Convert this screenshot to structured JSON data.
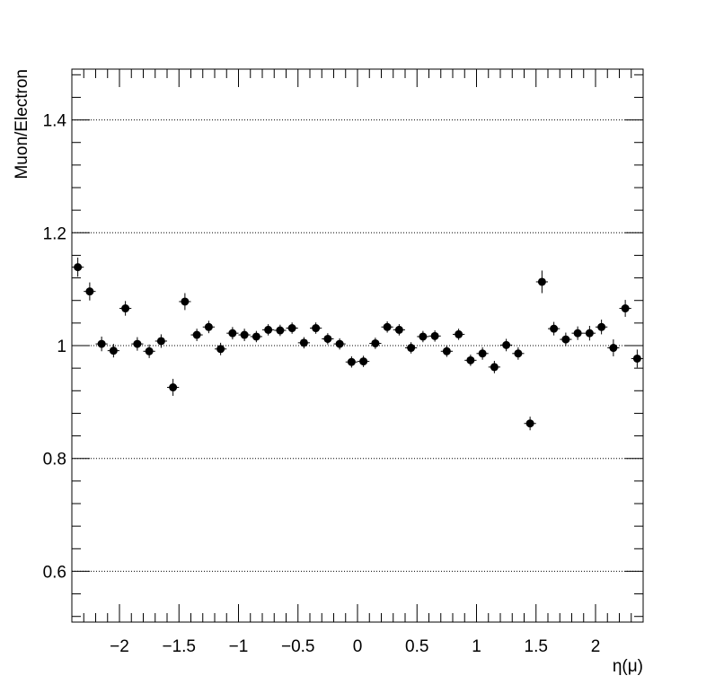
{
  "chart_data": {
    "type": "scatter",
    "title": "",
    "xlabel": "η(μ)",
    "ylabel": "Muon/Electron",
    "xlim": [
      -2.4,
      2.4
    ],
    "ylim": [
      0.51,
      1.49
    ],
    "x_ticks": [
      {
        "value": -2,
        "label": "−2"
      },
      {
        "value": -1.5,
        "label": "−1.5"
      },
      {
        "value": -1,
        "label": "−1"
      },
      {
        "value": -0.5,
        "label": "−0.5"
      },
      {
        "value": 0,
        "label": "0"
      },
      {
        "value": 0.5,
        "label": "0.5"
      },
      {
        "value": 1,
        "label": "1"
      },
      {
        "value": 1.5,
        "label": "1.5"
      },
      {
        "value": 2,
        "label": "2"
      }
    ],
    "y_ticks": [
      {
        "value": 0.6,
        "label": "0.6"
      },
      {
        "value": 0.8,
        "label": "0.8"
      },
      {
        "value": 1.0,
        "label": "1"
      },
      {
        "value": 1.2,
        "label": "1.2"
      },
      {
        "value": 1.4,
        "label": "1.4"
      }
    ],
    "grid": {
      "horizontal": true,
      "vertical": false,
      "style": "dotted"
    },
    "legend": "none",
    "marker_color": "#000000",
    "x_bin_halfwidth": 0.05,
    "series": [
      {
        "x": [
          -2.35,
          -2.25,
          -2.15,
          -2.05,
          -1.95,
          -1.85,
          -1.75,
          -1.65,
          -1.55,
          -1.45,
          -1.35,
          -1.25,
          -1.15,
          -1.05,
          -0.95,
          -0.85,
          -0.75,
          -0.65,
          -0.55,
          -0.45,
          -0.35,
          -0.25,
          -0.15,
          -0.05,
          0.05,
          0.15,
          0.25,
          0.35,
          0.45,
          0.55,
          0.65,
          0.75,
          0.85,
          0.95,
          1.05,
          1.15,
          1.25,
          1.35,
          1.45,
          1.55,
          1.65,
          1.75,
          1.85,
          1.95,
          2.05,
          2.15,
          2.25,
          2.35
        ],
        "y": [
          1.139,
          1.096,
          1.003,
          0.991,
          1.066,
          1.003,
          0.99,
          1.008,
          0.926,
          1.078,
          1.019,
          1.033,
          0.994,
          1.022,
          1.019,
          1.016,
          1.028,
          1.027,
          1.031,
          1.005,
          1.031,
          1.012,
          1.003,
          0.971,
          0.972,
          1.004,
          1.033,
          1.028,
          0.996,
          1.016,
          1.017,
          0.99,
          1.02,
          0.974,
          0.986,
          0.962,
          1.001,
          0.986,
          0.862,
          1.113,
          1.03,
          1.011,
          1.022,
          1.022,
          1.033,
          0.996,
          1.066,
          0.977
        ],
        "yerr": [
          0.017,
          0.016,
          0.013,
          0.012,
          0.013,
          0.012,
          0.012,
          0.012,
          0.015,
          0.015,
          0.011,
          0.011,
          0.011,
          0.011,
          0.011,
          0.01,
          0.01,
          0.01,
          0.01,
          0.01,
          0.01,
          0.01,
          0.01,
          0.01,
          0.01,
          0.01,
          0.01,
          0.01,
          0.01,
          0.01,
          0.01,
          0.01,
          0.01,
          0.01,
          0.011,
          0.011,
          0.011,
          0.011,
          0.012,
          0.02,
          0.012,
          0.012,
          0.012,
          0.013,
          0.013,
          0.015,
          0.015,
          0.016
        ]
      }
    ]
  }
}
